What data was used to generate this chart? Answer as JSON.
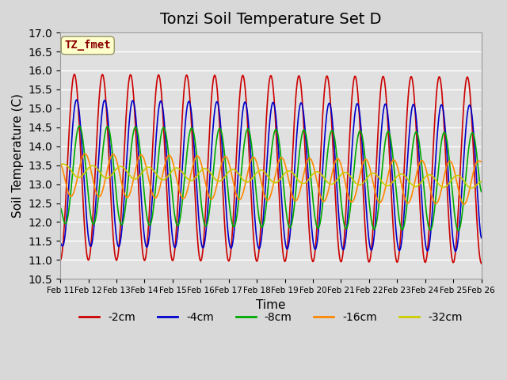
{
  "title": "Tonzi Soil Temperature Set D",
  "xlabel": "Time",
  "ylabel": "Soil Temperature (C)",
  "ylim": [
    10.5,
    17.0
  ],
  "xlim_days": 15,
  "annotation": "TZ_fmet",
  "series_colors": {
    "-2cm": "#CC0000",
    "-4cm": "#0000CC",
    "-8cm": "#00AA00",
    "-16cm": "#FF8800",
    "-32cm": "#CCCC00"
  },
  "series_labels": [
    "-2cm",
    "-4cm",
    "-8cm",
    "-16cm",
    "-32cm"
  ],
  "x_tick_labels": [
    "Feb 11",
    "Feb 12",
    "Feb 13",
    "Feb 14",
    "Feb 15",
    "Feb 16",
    "Feb 17",
    "Feb 18",
    "Feb 19",
    "Feb 20",
    "Feb 21",
    "Feb 22",
    "Feb 23",
    "Feb 24",
    "Feb 25",
    "Feb 26"
  ],
  "background_color": "#e8e8e8",
  "plot_bg_color": "#e0e0e0",
  "grid_color": "#ffffff",
  "title_fontsize": 14,
  "axis_label_fontsize": 11,
  "legend_fontsize": 10
}
